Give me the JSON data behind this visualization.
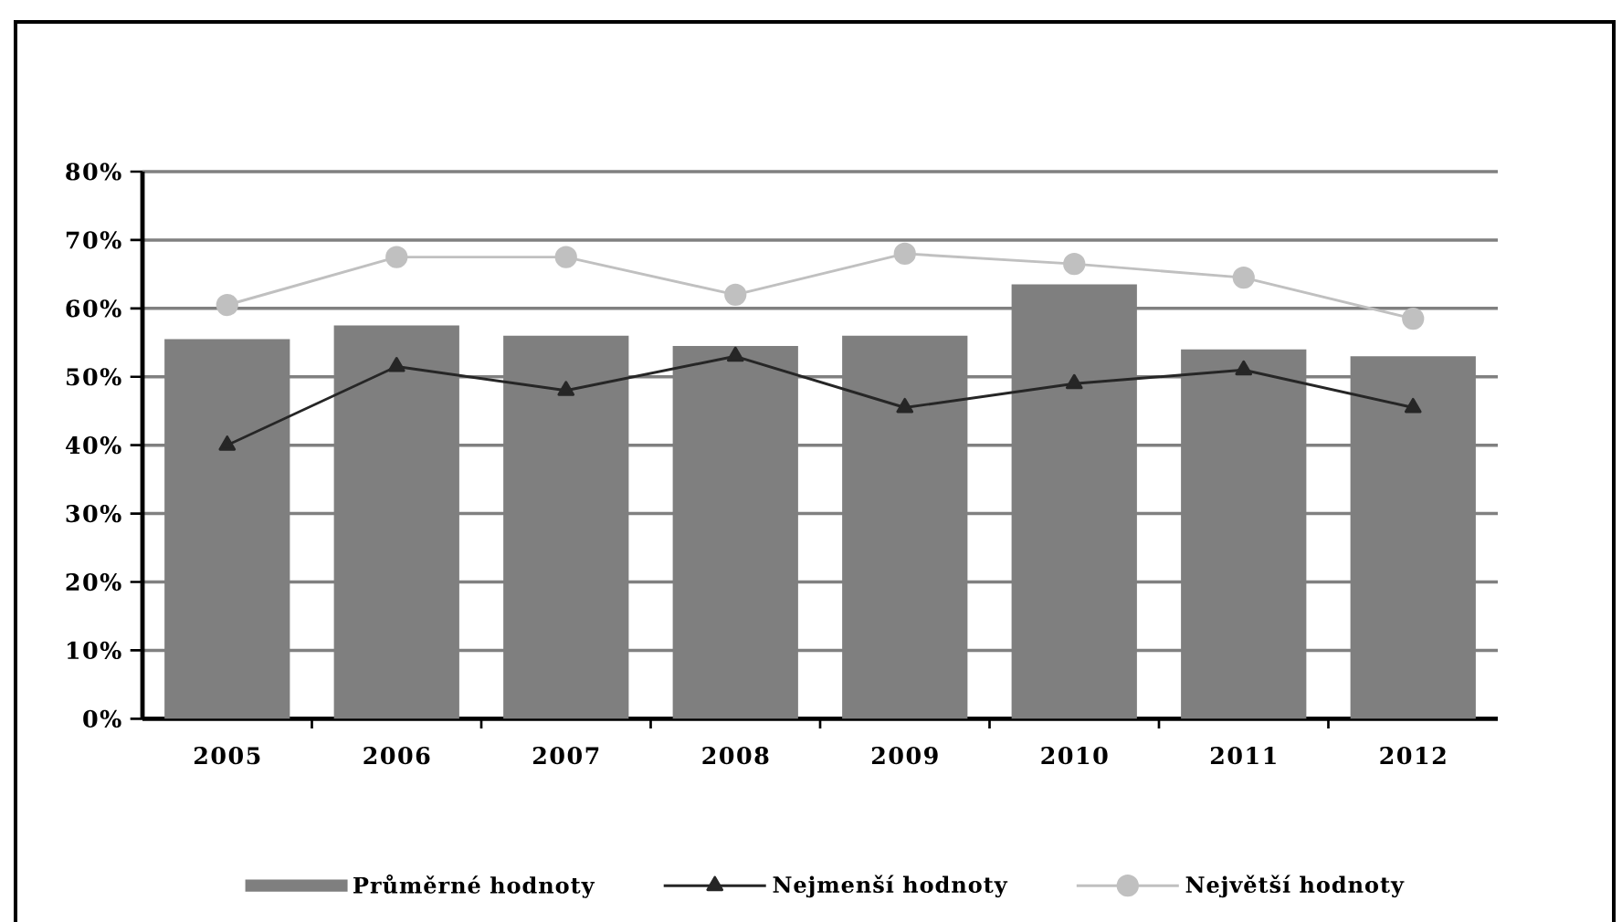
{
  "chart_data": {
    "type": "bar",
    "categories": [
      "2005",
      "2006",
      "2007",
      "2008",
      "2009",
      "2010",
      "2011",
      "2012"
    ],
    "series": [
      {
        "name": "Průměrné hodnoty",
        "color": "#7f7f7f",
        "values": [
          55.5,
          57.5,
          56,
          54.5,
          56,
          63.5,
          54,
          53
        ]
      },
      {
        "name": "Nejmenší hodnoty",
        "type": "line",
        "color": "#262626",
        "marker": "triangle",
        "values": [
          40,
          51.5,
          48,
          53,
          45.5,
          49,
          51,
          45.5
        ]
      },
      {
        "name": "Největší hodnoty",
        "type": "line",
        "color": "#c0c0c0",
        "marker": "circle",
        "values": [
          60.5,
          67.5,
          67.5,
          62,
          68,
          66.5,
          64.5,
          58.5
        ]
      }
    ],
    "ylim": [
      0,
      80
    ],
    "yticks": [
      {
        "value": 0,
        "label": "0%"
      },
      {
        "value": 10,
        "label": "10%"
      },
      {
        "value": 20,
        "label": "20%"
      },
      {
        "value": 30,
        "label": "30%"
      },
      {
        "value": 40,
        "label": "40%"
      },
      {
        "value": 50,
        "label": "50%"
      },
      {
        "value": 60,
        "label": "60%"
      },
      {
        "value": 70,
        "label": "70%"
      },
      {
        "value": 80,
        "label": "80%"
      }
    ],
    "grid": "y",
    "legend": "bottom"
  }
}
